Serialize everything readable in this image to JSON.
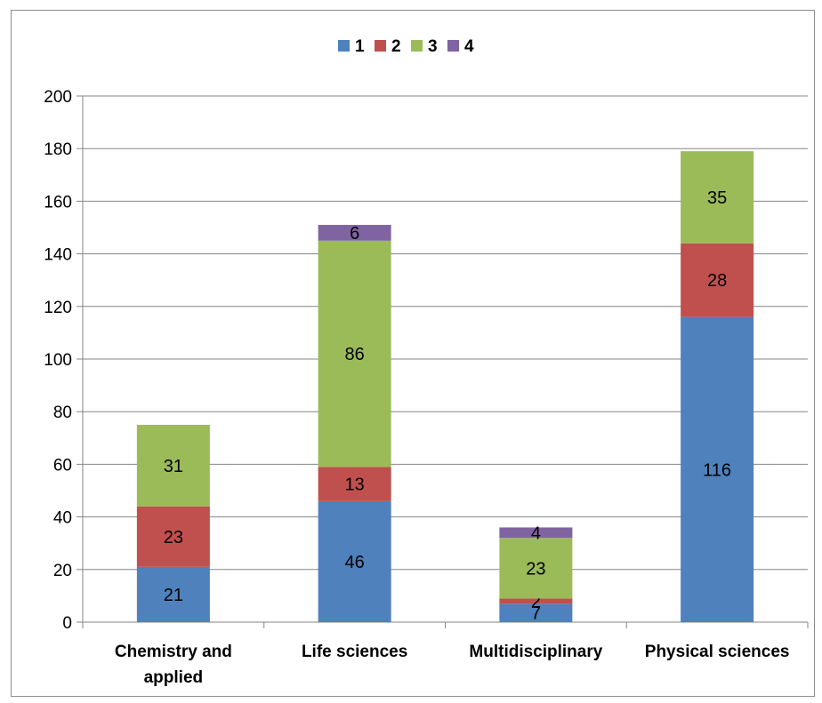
{
  "chart_data": {
    "type": "bar",
    "stacked": true,
    "categories": [
      "Chemistry and applied",
      "Life sciences",
      "Multidisciplinary",
      "Physical sciences"
    ],
    "category_label_lines": [
      [
        "Chemistry and",
        "applied"
      ],
      [
        "Life sciences"
      ],
      [
        "Multidisciplinary"
      ],
      [
        "Physical sciences"
      ]
    ],
    "series": [
      {
        "name": "1",
        "color": "#4f81bd",
        "values": [
          21,
          46,
          7,
          116
        ]
      },
      {
        "name": "2",
        "color": "#c0504d",
        "values": [
          23,
          13,
          2,
          28
        ]
      },
      {
        "name": "3",
        "color": "#9bbb59",
        "values": [
          31,
          86,
          23,
          35
        ]
      },
      {
        "name": "4",
        "color": "#8064a2",
        "values": [
          0,
          6,
          4,
          0
        ]
      }
    ],
    "ylim": [
      0,
      200
    ],
    "yticks": [
      0,
      20,
      40,
      60,
      80,
      100,
      120,
      140,
      160,
      180,
      200
    ],
    "grid": true,
    "legend_position": "top",
    "title": "",
    "xlabel": "",
    "ylabel": ""
  }
}
